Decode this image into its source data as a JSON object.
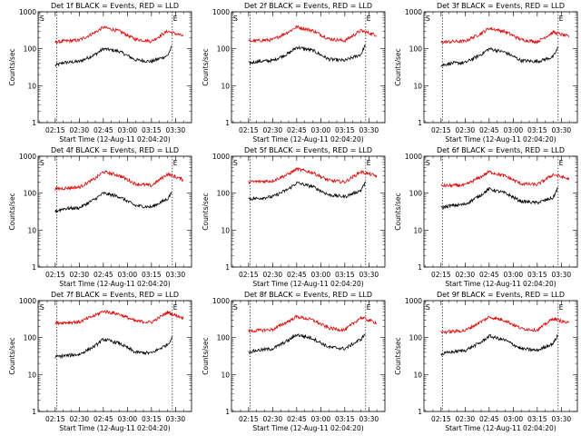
{
  "figure": {
    "panels": [
      {
        "title": "Det 1f BLACK = Events, RED = LLD"
      },
      {
        "title": "Det 2f BLACK = Events, RED = LLD"
      },
      {
        "title": "Det 3f BLACK = Events, RED = LLD"
      },
      {
        "title": "Det 4f BLACK = Events, RED = LLD"
      },
      {
        "title": "Det 5f BLACK = Events, RED = LLD"
      },
      {
        "title": "Det 6f BLACK = Events, RED = LLD"
      },
      {
        "title": "Det 7f BLACK = Events, RED = LLD"
      },
      {
        "title": "Det 8f BLACK = Events, RED = LLD"
      },
      {
        "title": "Det 9f BLACK = Events, RED = LLD"
      }
    ]
  },
  "chart_data": [
    {
      "type": "line",
      "title": "Det 1f BLACK = Events, RED = LLD",
      "ylabel": "Counts/sec",
      "xlabel": "Start Time (12-Aug-11 02:04:20)",
      "xticks": [
        "02:15",
        "02:30",
        "02:45",
        "03:00",
        "03:15",
        "03:30"
      ],
      "ylim": [
        1,
        1000
      ],
      "yscale": "log",
      "yticks": [
        "1",
        "10",
        "100",
        "1000"
      ],
      "markers": [
        "S",
        "E"
      ],
      "colors": {
        "events": "#000000",
        "lld": "#e00000"
      },
      "series": [
        {
          "name": "Events",
          "x": [
            "02:15",
            "02:20",
            "02:30",
            "02:40",
            "02:45",
            "02:55",
            "03:05",
            "03:15",
            "03:25",
            "03:28"
          ],
          "values": [
            35,
            42,
            45,
            70,
            100,
            85,
            50,
            45,
            65,
            120
          ]
        },
        {
          "name": "LLD",
          "x": [
            "02:15",
            "02:20",
            "02:30",
            "02:40",
            "02:45",
            "02:55",
            "03:05",
            "03:15",
            "03:25",
            "03:35"
          ],
          "values": [
            150,
            160,
            170,
            280,
            380,
            300,
            180,
            160,
            300,
            220
          ]
        }
      ]
    },
    {
      "type": "line",
      "title": "Det 2f BLACK = Events, RED = LLD",
      "ylabel": "Counts/sec",
      "xlabel": "Start Time (12-Aug-11 02:04:20)",
      "xticks": [
        "02:15",
        "02:30",
        "02:45",
        "03:00",
        "03:15",
        "03:30"
      ],
      "ylim": [
        1,
        1000
      ],
      "yscale": "log",
      "yticks": [
        "1",
        "10",
        "100",
        "1000"
      ],
      "markers": [
        "S",
        "E"
      ],
      "colors": {
        "events": "#000000",
        "lld": "#e00000"
      },
      "series": [
        {
          "name": "Events",
          "x": [
            "02:15",
            "02:20",
            "02:30",
            "02:40",
            "02:45",
            "02:55",
            "03:05",
            "03:15",
            "03:25",
            "03:28"
          ],
          "values": [
            40,
            45,
            48,
            75,
            110,
            90,
            52,
            48,
            70,
            130
          ]
        },
        {
          "name": "LLD",
          "x": [
            "02:15",
            "02:20",
            "02:30",
            "02:40",
            "02:45",
            "02:55",
            "03:05",
            "03:15",
            "03:25",
            "03:35"
          ],
          "values": [
            160,
            165,
            175,
            290,
            390,
            310,
            185,
            165,
            310,
            230
          ]
        }
      ]
    },
    {
      "type": "line",
      "title": "Det 3f BLACK = Events, RED = LLD",
      "ylabel": "Counts/sec",
      "xlabel": "Start Time (12-Aug-11 02:04:20)",
      "xticks": [
        "02:15",
        "02:30",
        "02:45",
        "03:00",
        "03:15",
        "03:30"
      ],
      "ylim": [
        1,
        1000
      ],
      "yscale": "log",
      "yticks": [
        "1",
        "10",
        "100",
        "1000"
      ],
      "markers": [
        "S",
        "E"
      ],
      "colors": {
        "events": "#000000",
        "lld": "#e00000"
      },
      "series": [
        {
          "name": "Events",
          "x": [
            "02:15",
            "02:20",
            "02:30",
            "02:40",
            "02:45",
            "02:55",
            "03:05",
            "03:15",
            "03:25",
            "03:28"
          ],
          "values": [
            35,
            40,
            42,
            70,
            100,
            80,
            48,
            45,
            60,
            110
          ]
        },
        {
          "name": "LLD",
          "x": [
            "02:15",
            "02:20",
            "02:30",
            "02:40",
            "02:45",
            "02:55",
            "03:05",
            "03:15",
            "03:25",
            "03:35"
          ],
          "values": [
            150,
            155,
            160,
            260,
            360,
            290,
            175,
            155,
            280,
            210
          ]
        }
      ]
    },
    {
      "type": "line",
      "title": "Det 4f BLACK = Events, RED = LLD",
      "ylabel": "Counts/sec",
      "xlabel": "Start Time (12-Aug-11 02:04:20)",
      "xticks": [
        "02:15",
        "02:30",
        "02:45",
        "03:00",
        "03:15",
        "03:30"
      ],
      "ylim": [
        1,
        1000
      ],
      "yscale": "log",
      "yticks": [
        "1",
        "10",
        "100",
        "1000"
      ],
      "markers": [
        "S",
        "E"
      ],
      "colors": {
        "events": "#000000",
        "lld": "#e00000"
      },
      "series": [
        {
          "name": "Events",
          "x": [
            "02:15",
            "02:20",
            "02:30",
            "02:40",
            "02:45",
            "02:55",
            "03:05",
            "03:15",
            "03:25",
            "03:28"
          ],
          "values": [
            32,
            38,
            40,
            70,
            100,
            80,
            46,
            42,
            70,
            110
          ]
        },
        {
          "name": "LLD",
          "x": [
            "02:15",
            "02:20",
            "02:30",
            "02:40",
            "02:45",
            "02:55",
            "03:05",
            "03:15",
            "03:25",
            "03:35"
          ],
          "values": [
            130,
            135,
            145,
            250,
            380,
            300,
            180,
            160,
            330,
            230
          ]
        }
      ]
    },
    {
      "type": "line",
      "title": "Det 5f BLACK = Events, RED = LLD",
      "ylabel": "Counts/sec",
      "xlabel": "Start Time (12-Aug-11 02:04:20)",
      "xticks": [
        "02:15",
        "02:30",
        "02:45",
        "03:00",
        "03:15",
        "03:30"
      ],
      "ylim": [
        1,
        1000
      ],
      "yscale": "log",
      "yticks": [
        "1",
        "10",
        "100",
        "1000"
      ],
      "markers": [
        "S",
        "E"
      ],
      "colors": {
        "events": "#000000",
        "lld": "#e00000"
      },
      "series": [
        {
          "name": "Events",
          "x": [
            "02:15",
            "02:20",
            "02:30",
            "02:40",
            "02:45",
            "02:55",
            "03:05",
            "03:15",
            "03:25",
            "03:28"
          ],
          "values": [
            70,
            72,
            80,
            130,
            190,
            150,
            90,
            80,
            120,
            200
          ]
        },
        {
          "name": "LLD",
          "x": [
            "02:15",
            "02:20",
            "02:30",
            "02:40",
            "02:45",
            "02:55",
            "03:05",
            "03:15",
            "03:25",
            "03:35"
          ],
          "values": [
            200,
            205,
            215,
            330,
            450,
            360,
            220,
            200,
            380,
            290
          ]
        }
      ]
    },
    {
      "type": "line",
      "title": "Det 6f BLACK = Events, RED = LLD",
      "ylabel": "Counts/sec",
      "xlabel": "Start Time (12-Aug-11 02:04:20)",
      "xticks": [
        "02:15",
        "02:30",
        "02:45",
        "03:00",
        "03:15",
        "03:30"
      ],
      "ylim": [
        1,
        1000
      ],
      "yscale": "log",
      "yticks": [
        "1",
        "10",
        "100",
        "1000"
      ],
      "markers": [
        "S",
        "E"
      ],
      "colors": {
        "events": "#000000",
        "lld": "#e00000"
      },
      "series": [
        {
          "name": "Events",
          "x": [
            "02:15",
            "02:20",
            "02:30",
            "02:40",
            "02:45",
            "02:55",
            "03:05",
            "03:15",
            "03:25",
            "03:28"
          ],
          "values": [
            40,
            45,
            50,
            90,
            130,
            100,
            60,
            55,
            75,
            150
          ]
        },
        {
          "name": "LLD",
          "x": [
            "02:15",
            "02:20",
            "02:30",
            "02:40",
            "02:45",
            "02:55",
            "03:05",
            "03:15",
            "03:25",
            "03:35"
          ],
          "values": [
            160,
            160,
            165,
            280,
            380,
            290,
            180,
            170,
            320,
            240
          ]
        }
      ]
    },
    {
      "type": "line",
      "title": "Det 7f BLACK = Events, RED = LLD",
      "ylabel": "Counts/sec",
      "xlabel": "Start Time (12-Aug-11 02:04:20)",
      "xticks": [
        "02:15",
        "02:30",
        "02:45",
        "03:00",
        "03:15",
        "03:30"
      ],
      "ylim": [
        1,
        1000
      ],
      "yscale": "log",
      "yticks": [
        "1",
        "10",
        "100",
        "1000"
      ],
      "markers": [
        "S",
        "E"
      ],
      "colors": {
        "events": "#000000",
        "lld": "#e00000"
      },
      "series": [
        {
          "name": "Events",
          "x": [
            "02:15",
            "02:20",
            "02:30",
            "02:40",
            "02:45",
            "02:55",
            "03:05",
            "03:15",
            "03:25",
            "03:28"
          ],
          "values": [
            30,
            32,
            35,
            60,
            90,
            70,
            40,
            38,
            65,
            100
          ]
        },
        {
          "name": "LLD",
          "x": [
            "02:15",
            "02:20",
            "02:30",
            "02:40",
            "02:45",
            "02:55",
            "03:05",
            "03:15",
            "03:25",
            "03:35"
          ],
          "values": [
            250,
            255,
            265,
            400,
            520,
            430,
            280,
            260,
            480,
            340
          ]
        }
      ]
    },
    {
      "type": "line",
      "title": "Det 8f BLACK = Events, RED = LLD",
      "ylabel": "Counts/sec",
      "xlabel": "Start Time (12-Aug-11 02:04:20)",
      "xticks": [
        "02:15",
        "02:30",
        "02:45",
        "03:00",
        "03:15",
        "03:30"
      ],
      "ylim": [
        1,
        1000
      ],
      "yscale": "log",
      "yticks": [
        "1",
        "10",
        "100",
        "1000"
      ],
      "markers": [
        "S",
        "E"
      ],
      "colors": {
        "events": "#000000",
        "lld": "#e00000"
      },
      "series": [
        {
          "name": "Events",
          "x": [
            "02:15",
            "02:20",
            "02:30",
            "02:40",
            "02:45",
            "02:55",
            "03:05",
            "03:15",
            "03:25",
            "03:28"
          ],
          "values": [
            40,
            45,
            50,
            85,
            120,
            95,
            55,
            50,
            90,
            130
          ]
        },
        {
          "name": "LLD",
          "x": [
            "02:15",
            "02:20",
            "02:30",
            "02:40",
            "02:45",
            "02:55",
            "03:05",
            "03:15",
            "03:25",
            "03:35"
          ],
          "values": [
            150,
            155,
            165,
            280,
            370,
            300,
            180,
            160,
            350,
            250
          ]
        }
      ]
    },
    {
      "type": "line",
      "title": "Det 9f BLACK = Events, RED = LLD",
      "ylabel": "Counts/sec",
      "xlabel": "Start Time (12-Aug-11 02:04:20)",
      "xticks": [
        "02:15",
        "02:30",
        "02:45",
        "03:00",
        "03:15",
        "03:30"
      ],
      "ylim": [
        1,
        1000
      ],
      "yscale": "log",
      "yticks": [
        "1",
        "10",
        "100",
        "1000"
      ],
      "markers": [
        "S",
        "E"
      ],
      "colors": {
        "events": "#000000",
        "lld": "#e00000"
      },
      "series": [
        {
          "name": "Events",
          "x": [
            "02:15",
            "02:20",
            "02:30",
            "02:40",
            "02:45",
            "02:55",
            "03:05",
            "03:15",
            "03:25",
            "03:28"
          ],
          "values": [
            35,
            40,
            45,
            75,
            110,
            85,
            50,
            45,
            70,
            120
          ]
        },
        {
          "name": "LLD",
          "x": [
            "02:15",
            "02:20",
            "02:30",
            "02:40",
            "02:45",
            "02:55",
            "03:05",
            "03:15",
            "03:25",
            "03:35"
          ],
          "values": [
            140,
            145,
            155,
            270,
            360,
            290,
            175,
            160,
            330,
            240
          ]
        }
      ]
    }
  ]
}
